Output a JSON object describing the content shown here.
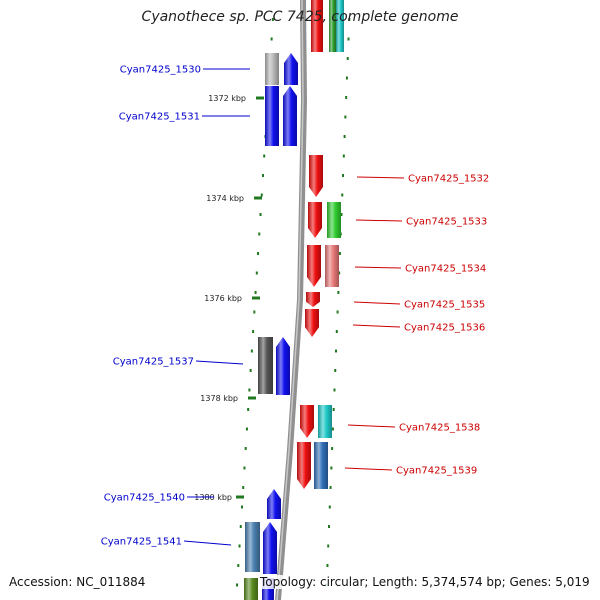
{
  "title": "Cyanothece sp. PCC 7425, complete genome",
  "accession_text": "Accession: NC_011884",
  "topology_text": "Topology: circular; Length: 5,374,574 bp; Genes: 5,019",
  "colors": {
    "backbone": "#909090",
    "tick": "#207820",
    "left_label": "#0000cc",
    "right_label": "#cc0000"
  },
  "kbp_markers": [
    {
      "label": "1372 kbp"
    },
    {
      "label": "1374 kbp"
    },
    {
      "label": "1376 kbp"
    },
    {
      "label": "1378 kbp"
    },
    {
      "label": "1380 kbp"
    }
  ],
  "genes": [
    {
      "id": "Cyan7425_1530",
      "side": "left",
      "color": "#1010ee",
      "neighbor_color": "#b8b8b8"
    },
    {
      "id": "Cyan7425_1531",
      "side": "left",
      "color": "#1010ee",
      "neighbor_color": "#1010ee"
    },
    {
      "id": "Cyan7425_1532",
      "side": "right",
      "color": "#ee1010",
      "neighbor_color": null
    },
    {
      "id": "Cyan7425_1533",
      "side": "right",
      "color": "#ee1010",
      "neighbor_color": "#30cc30"
    },
    {
      "id": "Cyan7425_1534",
      "side": "right",
      "color": "#ee1010",
      "neighbor_color": "#e87878"
    },
    {
      "id": "Cyan7425_1535",
      "side": "right",
      "color": "#ee1010",
      "neighbor_color": null
    },
    {
      "id": "Cyan7425_1536",
      "side": "right",
      "color": "#ee1010",
      "neighbor_color": null
    },
    {
      "id": "Cyan7425_1537",
      "side": "left",
      "color": "#1010ee",
      "neighbor_color": "#555555"
    },
    {
      "id": "Cyan7425_1538",
      "side": "right",
      "color": "#ee1010",
      "neighbor_color": "#20c8c8"
    },
    {
      "id": "Cyan7425_1539",
      "side": "right",
      "color": "#ee1010",
      "neighbor_color": "#3070b8"
    },
    {
      "id": "Cyan7425_1540",
      "side": "left",
      "color": "#1010ee",
      "neighbor_color": null
    },
    {
      "id": "Cyan7425_1541",
      "side": "left",
      "color": "#1010ee",
      "neighbor_color": "#4a7fb0"
    }
  ]
}
